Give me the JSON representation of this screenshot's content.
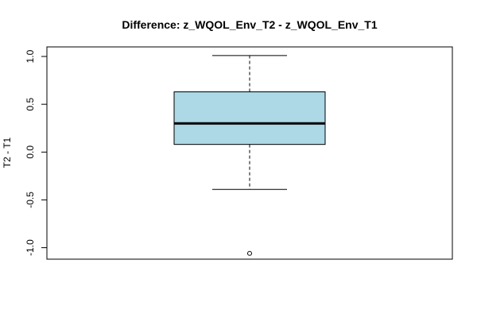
{
  "chart_data": {
    "type": "boxplot",
    "title": "Difference: z_WQOL_Env_T2 - z_WQOL_Env_T1",
    "xlabel": "",
    "ylabel": "T2 - T1",
    "ylim": [
      -1.12,
      1.1
    ],
    "yticks": [
      1.0,
      0.5,
      0.0,
      -0.5,
      -1.0
    ],
    "ytick_labels": [
      "1.0",
      "0.5",
      "0.0",
      "-0.5",
      "-1.0"
    ],
    "box": {
      "whisker_low": -0.39,
      "q1": 0.08,
      "median": 0.3,
      "q3": 0.63,
      "whisker_high": 1.01
    },
    "outliers": [
      -1.06
    ],
    "fill_color": "#add8e6",
    "grid": false
  }
}
